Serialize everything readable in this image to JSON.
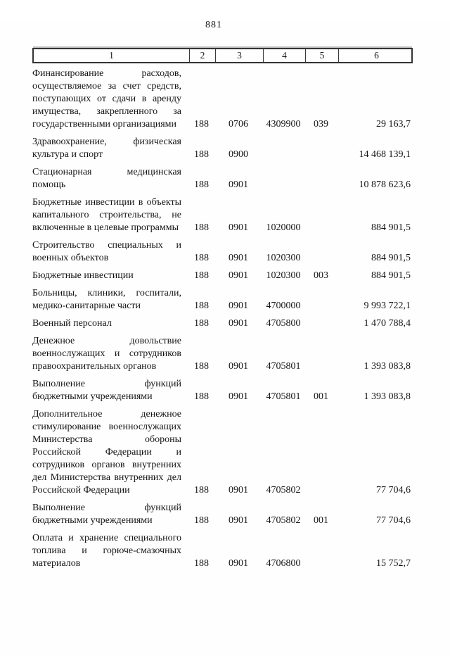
{
  "page": {
    "number": "881"
  },
  "table": {
    "headers": [
      "1",
      "2",
      "3",
      "4",
      "5",
      "6"
    ],
    "rows": [
      {
        "name": "Финансирование расходов, осуществляемое за счет средств, поступающих от сдачи в аренду имущества, закрепленного за государственными организациями",
        "chapter": "188",
        "section": "0706",
        "target": "4309900",
        "type": "039",
        "amount": "29 163,7"
      },
      {
        "name": "Здравоохранение, физическая культура и спорт",
        "chapter": "188",
        "section": "0900",
        "target": "",
        "type": "",
        "amount": "14 468 139,1"
      },
      {
        "name": "Стационарная медицинская помощь",
        "chapter": "188",
        "section": "0901",
        "target": "",
        "type": "",
        "amount": "10 878 623,6"
      },
      {
        "name": "Бюджетные инвестиции в объекты капитального строительства, не включенные в целевые программы",
        "chapter": "188",
        "section": "0901",
        "target": "1020000",
        "type": "",
        "amount": "884 901,5"
      },
      {
        "name": "Строительство специальных и военных объектов",
        "chapter": "188",
        "section": "0901",
        "target": "1020300",
        "type": "",
        "amount": "884 901,5"
      },
      {
        "name": "Бюджетные инвестиции",
        "chapter": "188",
        "section": "0901",
        "target": "1020300",
        "type": "003",
        "amount": "884 901,5"
      },
      {
        "name": "Больницы, клиники, госпитали, медико-санитарные части",
        "chapter": "188",
        "section": "0901",
        "target": "4700000",
        "type": "",
        "amount": "9 993 722,1"
      },
      {
        "name": "Военный персонал",
        "chapter": "188",
        "section": "0901",
        "target": "4705800",
        "type": "",
        "amount": "1 470 788,4"
      },
      {
        "name": "Денежное довольствие военнослужащих и сотрудников правоохранительных органов",
        "chapter": "188",
        "section": "0901",
        "target": "4705801",
        "type": "",
        "amount": "1 393 083,8"
      },
      {
        "name": "Выполнение функций бюджетными учреждениями",
        "chapter": "188",
        "section": "0901",
        "target": "4705801",
        "type": "001",
        "amount": "1 393 083,8"
      },
      {
        "name": "Дополнительное денежное стимулирование военнослужащих Министерства обороны Российской Федерации и сотрудников органов внутренних дел Министерства внутренних дел Российской Федерации",
        "chapter": "188",
        "section": "0901",
        "target": "4705802",
        "type": "",
        "amount": "77 704,6"
      },
      {
        "name": "Выполнение функций бюджетными учреждениями",
        "chapter": "188",
        "section": "0901",
        "target": "4705802",
        "type": "001",
        "amount": "77 704,6"
      },
      {
        "name": "Оплата и хранение специального топлива и горюче-смазочных материалов",
        "chapter": "188",
        "section": "0901",
        "target": "4706800",
        "type": "",
        "amount": "15 752,7"
      }
    ]
  }
}
